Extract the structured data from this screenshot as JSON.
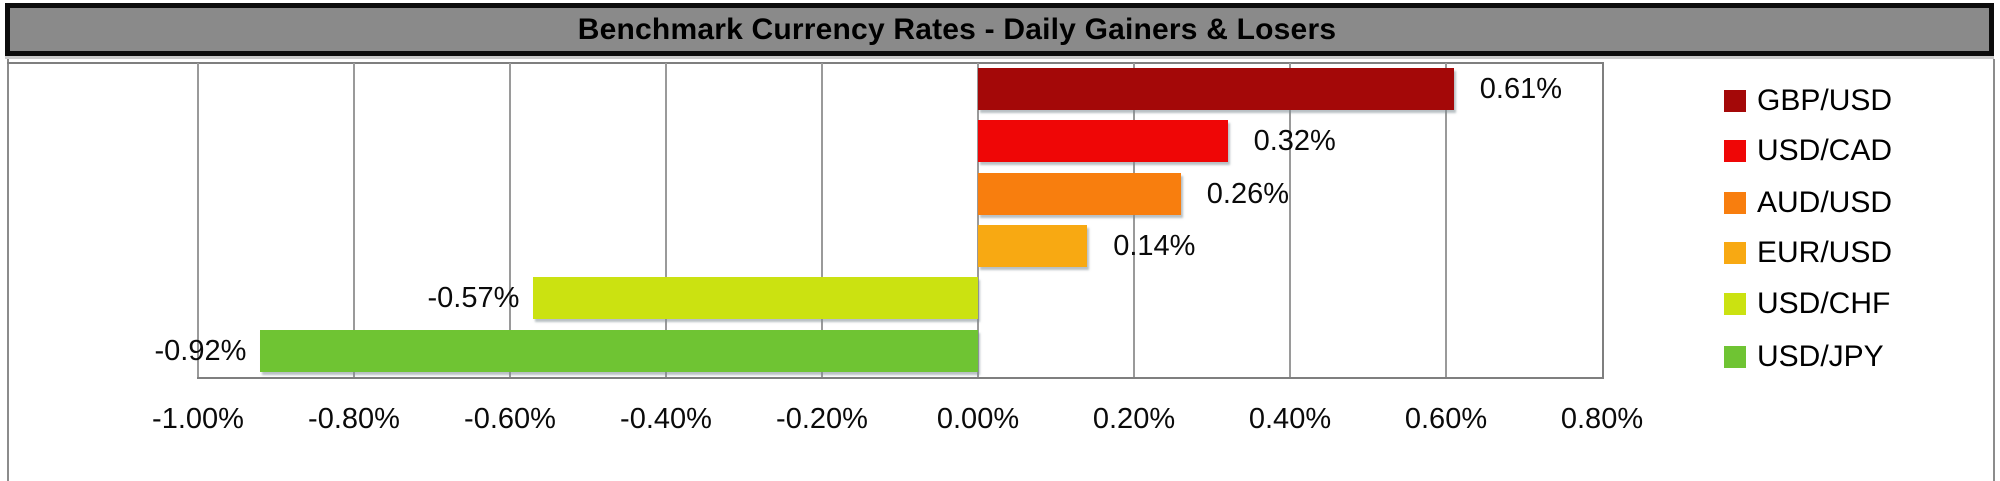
{
  "title": "Benchmark Currency Rates - Daily Gainers & Losers",
  "chart_data": {
    "type": "bar",
    "orientation": "horizontal",
    "title": "Benchmark Currency Rates - Daily Gainers & Losers",
    "series": [
      {
        "name": "GBP/USD",
        "value": 0.61,
        "label": "0.61%",
        "color": "#A40808"
      },
      {
        "name": "USD/CAD",
        "value": 0.32,
        "label": "0.32%",
        "color": "#EF0606"
      },
      {
        "name": "AUD/USD",
        "value": 0.26,
        "label": "0.26%",
        "color": "#F87E0E"
      },
      {
        "name": "EUR/USD",
        "value": 0.14,
        "label": "0.14%",
        "color": "#F8A912"
      },
      {
        "name": "USD/CHF",
        "value": -0.57,
        "label": "-0.57%",
        "color": "#CBE211"
      },
      {
        "name": "USD/JPY",
        "value": -0.92,
        "label": "-0.92%",
        "color": "#6FC433"
      }
    ],
    "x_axis": {
      "min": -1.0,
      "max": 0.8,
      "tick_step": 0.2,
      "tick_labels": [
        "-1.00%",
        "-0.80%",
        "-0.60%",
        "-0.40%",
        "-0.20%",
        "0.00%",
        "0.20%",
        "0.40%",
        "0.60%",
        "0.80%"
      ]
    },
    "value_format": "percent",
    "grid": true,
    "legend_position": "right",
    "data_labels": "outside-end"
  },
  "colors": {
    "title_bg": "#8A8A8A",
    "title_border": "#0D0D0D",
    "gridline": "#9A9A9A",
    "axis": "#7F7F7F",
    "text": "#000000",
    "background": "#FFFFFF"
  }
}
